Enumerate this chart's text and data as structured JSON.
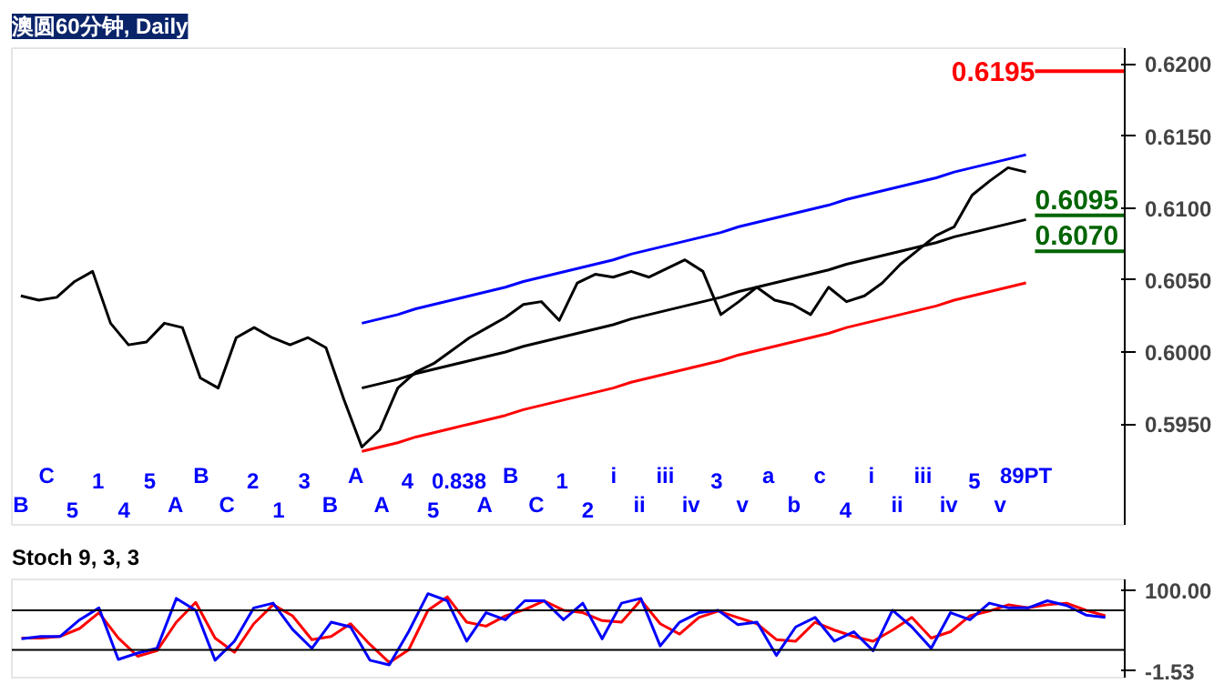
{
  "chart_data": [
    {
      "type": "line",
      "title": "澳圆60分钟, Daily",
      "tick_labels": "y",
      "grid": false,
      "categories": [
        null,
        null,
        null,
        null,
        null,
        null,
        null,
        null,
        null,
        null,
        null,
        null,
        null,
        null,
        null,
        null,
        null,
        null,
        null,
        null,
        null,
        null,
        null,
        null,
        null,
        null,
        null,
        null,
        null,
        null,
        null,
        null,
        null,
        null,
        null,
        null,
        null,
        null,
        null,
        null,
        null,
        null,
        null,
        null,
        null,
        null,
        null,
        null,
        null,
        null,
        null,
        null,
        null,
        null,
        null,
        null,
        null
      ],
      "ylim": [
        0.588,
        0.6211
      ],
      "yticks": [
        {
          "value": 0.595,
          "label": "0.5950"
        },
        {
          "value": 0.6,
          "label": "0.6000"
        },
        {
          "value": 0.605,
          "label": "0.6050"
        },
        {
          "value": 0.61,
          "label": "0.6100"
        },
        {
          "value": 0.615,
          "label": "0.6150"
        },
        {
          "value": 0.62,
          "label": "0.6200"
        }
      ],
      "series": [
        {
          "color": "#000000",
          "values": [
            0.6039,
            0.6036,
            0.6038,
            0.6049,
            0.6056,
            0.602,
            0.6005,
            0.6007,
            0.602,
            0.6017,
            0.5982,
            0.5975,
            0.601,
            0.6017,
            0.601,
            0.6005,
            0.601,
            0.6003,
            0.5967,
            0.5934,
            0.5946,
            0.5975,
            0.5986,
            0.5992,
            0.6001,
            0.601,
            0.6017,
            0.6024,
            0.6033,
            0.6035,
            0.6022,
            0.6048,
            0.6054,
            0.6052,
            0.6056,
            0.6052,
            0.6058,
            0.6064,
            0.6056,
            0.6026,
            0.6035,
            0.6045,
            0.6036,
            0.6033,
            0.6026,
            0.6045,
            0.6035,
            0.6039,
            0.6048,
            0.6061,
            0.6071,
            0.6081,
            0.6087,
            0.6109,
            0.6119,
            0.6128,
            0.6125
          ]
        },
        {
          "color": "#0000ff",
          "values": [
            null,
            null,
            null,
            null,
            null,
            null,
            null,
            null,
            null,
            null,
            null,
            null,
            null,
            null,
            null,
            null,
            null,
            null,
            null,
            0.602,
            0.6023,
            0.6026,
            0.603,
            0.6033,
            0.6036,
            0.6039,
            0.6042,
            0.6045,
            0.6049,
            0.6052,
            0.6055,
            0.6058,
            0.6061,
            0.6064,
            0.6068,
            0.6071,
            0.6074,
            0.6077,
            0.608,
            0.6083,
            0.6087,
            0.609,
            0.6093,
            0.6096,
            0.6099,
            0.6102,
            0.6106,
            0.6109,
            0.6112,
            0.6115,
            0.6118,
            0.6121,
            0.6125,
            0.6128,
            0.6131,
            0.6134,
            0.6137
          ]
        },
        {
          "color": "#000000",
          "values": [
            null,
            null,
            null,
            null,
            null,
            null,
            null,
            null,
            null,
            null,
            null,
            null,
            null,
            null,
            null,
            null,
            null,
            null,
            null,
            0.5975,
            0.5978,
            0.5981,
            0.5985,
            0.5988,
            0.5991,
            0.5994,
            0.5997,
            0.6,
            0.6004,
            0.6007,
            0.601,
            0.6013,
            0.6016,
            0.6019,
            0.6023,
            0.6026,
            0.6029,
            0.6032,
            0.6035,
            0.6038,
            0.6042,
            0.6045,
            0.6048,
            0.6051,
            0.6054,
            0.6057,
            0.6061,
            0.6064,
            0.6067,
            0.607,
            0.6073,
            0.6076,
            0.608,
            0.6083,
            0.6086,
            0.6089,
            0.6092
          ]
        },
        {
          "color": "#ff0000",
          "values": [
            null,
            null,
            null,
            null,
            null,
            null,
            null,
            null,
            null,
            null,
            null,
            null,
            null,
            null,
            null,
            null,
            null,
            null,
            null,
            0.5931,
            0.5934,
            0.5937,
            0.5941,
            0.5944,
            0.5947,
            0.595,
            0.5953,
            0.5956,
            0.596,
            0.5963,
            0.5966,
            0.5969,
            0.5972,
            0.5975,
            0.5979,
            0.5982,
            0.5985,
            0.5988,
            0.5991,
            0.5994,
            0.5998,
            0.6001,
            0.6004,
            0.6007,
            0.601,
            0.6013,
            0.6017,
            0.602,
            0.6023,
            0.6026,
            0.6029,
            0.6032,
            0.6036,
            0.6039,
            0.6042,
            0.6045,
            0.6048
          ]
        }
      ],
      "ref_lines": [
        {
          "axis": "y",
          "value": 0.6195,
          "label": "0.6195",
          "color": "#ff0000"
        },
        {
          "axis": "y",
          "value": 0.6095,
          "label": "0.6095",
          "color": "#006400"
        },
        {
          "axis": "y",
          "value": 0.607,
          "label": "0.6070",
          "color": "#006400"
        }
      ],
      "annotations": [
        "B",
        "C",
        "5",
        "1",
        "4",
        "5",
        "A",
        "B",
        "C",
        "2",
        "1",
        "3",
        "B",
        "A",
        "A",
        "4",
        "5",
        "0.838",
        "A",
        "B",
        "C",
        "1",
        "2",
        "i",
        "ii",
        "iii",
        "iv",
        "3",
        "v",
        "a",
        "b",
        "c",
        "4",
        "i",
        "ii",
        "iii",
        "iv",
        "5",
        "v",
        "89PT"
      ]
    },
    {
      "type": "line",
      "title": "Stoch 9, 3, 3",
      "tick_labels": "y",
      "grid": false,
      "categories": [
        null,
        null,
        null,
        null,
        null,
        null,
        null,
        null,
        null,
        null,
        null,
        null,
        null,
        null,
        null,
        null,
        null,
        null,
        null,
        null,
        null,
        null,
        null,
        null,
        null,
        null,
        null,
        null,
        null,
        null,
        null,
        null,
        null,
        null,
        null,
        null,
        null,
        null,
        null,
        null,
        null,
        null,
        null,
        null,
        null,
        null,
        null,
        null,
        null,
        null,
        null,
        null,
        null,
        null,
        null,
        null,
        null
      ],
      "ylim": [
        -10,
        114
      ],
      "yticks": [
        {
          "value": 100,
          "label": "100.00"
        },
        {
          "value": -1.53,
          "label": "-1.53"
        }
      ],
      "series": [
        {
          "color": "#ff0000",
          "values": [
            40,
            40,
            42,
            52,
            72,
            40,
            17,
            24,
            60,
            85,
            40,
            22,
            58,
            82,
            68,
            38,
            42,
            58,
            32,
            9,
            25,
            75,
            92,
            60,
            55,
            68,
            76,
            87,
            75,
            72,
            62,
            60,
            88,
            58,
            45,
            66,
            74,
            66,
            58,
            38,
            36,
            60,
            50,
            42,
            36,
            50,
            66,
            40,
            48,
            68,
            74,
            82,
            78,
            82,
            84,
            75,
            68
          ]
        },
        {
          "color": "#0000ff",
          "values": [
            39,
            42,
            42,
            63,
            78,
            13,
            21,
            27,
            90,
            75,
            12,
            36,
            78,
            84,
            51,
            27,
            60,
            54,
            12,
            6,
            48,
            96,
            87,
            36,
            72,
            63,
            87,
            87,
            63,
            84,
            39,
            84,
            90,
            30,
            60,
            72,
            75,
            57,
            60,
            18,
            54,
            66,
            36,
            48,
            24,
            75,
            54,
            27,
            72,
            63,
            84,
            78,
            78,
            87,
            81,
            69,
            66
          ]
        }
      ],
      "ref_lines": [
        {
          "axis": "y",
          "value": 75,
          "color": "#000000"
        },
        {
          "axis": "y",
          "value": 25,
          "color": "#000000"
        }
      ]
    }
  ]
}
